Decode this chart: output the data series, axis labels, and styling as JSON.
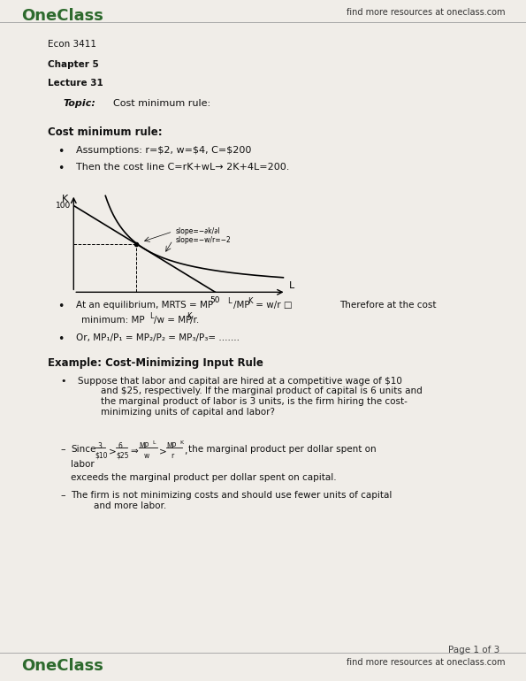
{
  "bg_color": "#f0ede8",
  "header_logo_text": "OneClass",
  "header_right_text": "find more resources at oneclass.com",
  "footer_logo_text": "OneClass",
  "footer_right_text": "find more resources at oneclass.com",
  "page_number": "Page 1 of 3",
  "course": "Econ 3411",
  "chapter": "Chapter 5",
  "lecture": "Lecture 31",
  "topic_label": "Topic:",
  "topic_text": "Cost minimum rule:",
  "section1_title": "Cost minimum rule:",
  "bullet1": "Assumptions: r=$2, w=$4, C=$200",
  "bullet2": "Then the cost line C=rK+wL→ 2K+4L=200.",
  "bullet4": "Or, MP₁/P₁ = MP₂/P₂ = MP₃/P₃= .......",
  "example_title": "Example: Cost-Minimizing Input Rule",
  "green_color": "#2d6a2d",
  "text_color": "#111111",
  "gray_color": "#666666"
}
